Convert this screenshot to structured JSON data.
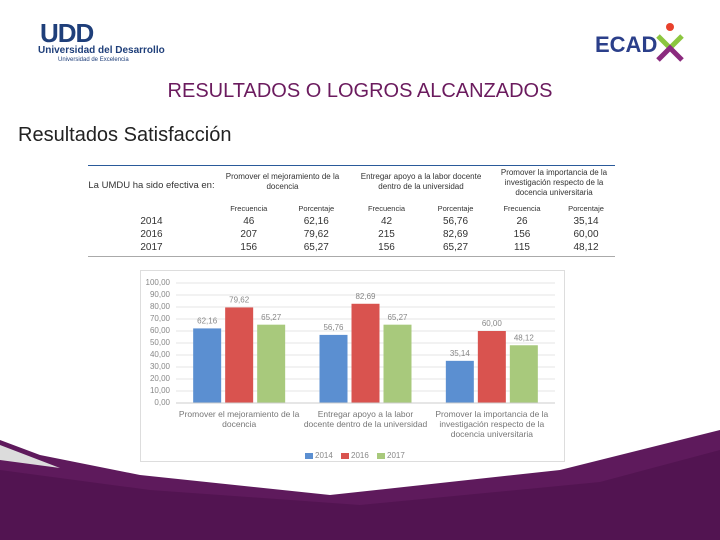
{
  "header": {
    "logo_left": "UDD",
    "logo_left_name": "Universidad del Desarrollo",
    "logo_left_tagline": "Universidad de Excelencia",
    "logo_right": "ECAD"
  },
  "title": "RESULTADOS O LOGROS ALCANZADOS",
  "subtitle": "Resultados Satisfacción",
  "table": {
    "corner": "La UMDU ha sido efectiva en:",
    "groups": [
      "Promover el mejoramiento de la docencia",
      "Entregar apoyo a la labor docente dentro de la universidad",
      "Promover la importancia de la investigación respecto de la docencia universitaria"
    ],
    "subheaders": [
      "Frecuencia",
      "Porcentaje"
    ],
    "rows": [
      [
        "2014",
        "46",
        "62,16",
        "42",
        "56,76",
        "26",
        "35,14"
      ],
      [
        "2016",
        "207",
        "79,62",
        "215",
        "82,69",
        "156",
        "60,00"
      ],
      [
        "2017",
        "156",
        "65,27",
        "156",
        "65,27",
        "115",
        "48,12"
      ]
    ]
  },
  "chart_data": {
    "type": "bar",
    "categories": [
      "Promover el mejoramiento de la docencia",
      "Entregar apoyo a la labor docente dentro de la universidad",
      "Promover la importancia de la investigación respecto de la docencia universitaria"
    ],
    "series": [
      {
        "name": "2014",
        "color": "#5b8fd1",
        "values": [
          62.16,
          56.76,
          35.14
        ],
        "value_labels": [
          "62,16",
          "56,76",
          "35,14"
        ]
      },
      {
        "name": "2016",
        "color": "#d9534f",
        "values": [
          79.62,
          82.69,
          60.0
        ],
        "value_labels": [
          "79,62",
          "82,69",
          "60,00"
        ]
      },
      {
        "name": "2017",
        "color": "#a8c97c",
        "values": [
          65.27,
          65.27,
          48.12
        ],
        "value_labels": [
          "65,27",
          "65,27",
          "48,12"
        ]
      }
    ],
    "ylim": [
      0,
      100
    ],
    "yticks": [
      {
        "value": 0,
        "label": "0,00"
      },
      {
        "value": 10,
        "label": "10,00"
      },
      {
        "value": 20,
        "label": "20,00"
      },
      {
        "value": 30,
        "label": "30,00"
      },
      {
        "value": 40,
        "label": "40,00"
      },
      {
        "value": 50,
        "label": "50,00"
      },
      {
        "value": 60,
        "label": "60,00"
      },
      {
        "value": 70,
        "label": "70,00"
      },
      {
        "value": 80,
        "label": "80,00"
      },
      {
        "value": 90,
        "label": "90,00"
      },
      {
        "value": 100,
        "label": "100,00"
      }
    ],
    "grid": true,
    "legend": "bottom"
  }
}
